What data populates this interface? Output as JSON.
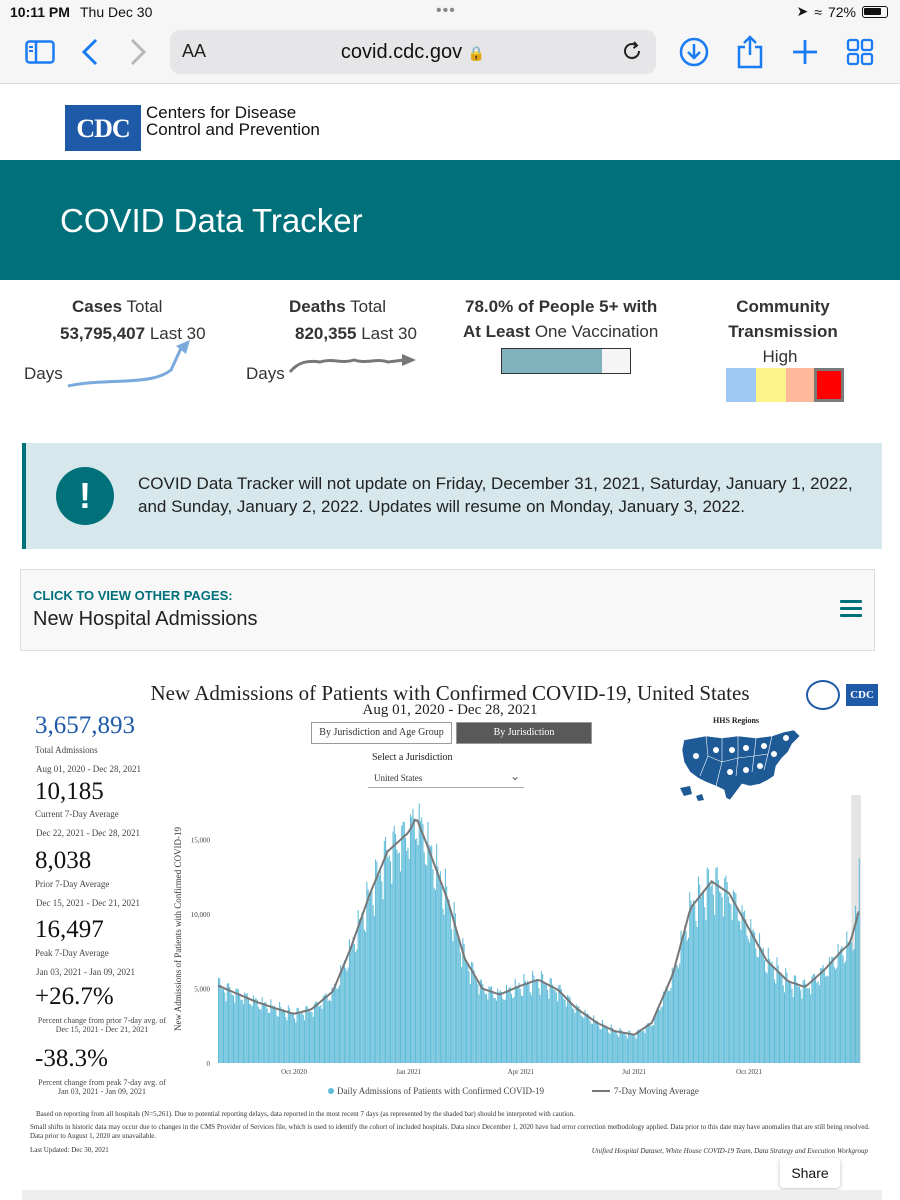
{
  "status_bar": {
    "time": "10:11 PM",
    "date": "Thu Dec 30",
    "battery": "72%"
  },
  "browser": {
    "text_size": "AA",
    "url": "covid.cdc.gov"
  },
  "header": {
    "logo_text": "CDC",
    "org_line1": "Centers for Disease",
    "org_line2": "Control and Prevention",
    "banner_title": "COVID Data Tracker"
  },
  "summary": {
    "cases": {
      "label_bold": "Cases",
      "label": "Total",
      "value": "53,795,407",
      "period_a": "Last 30",
      "period_b": "Days"
    },
    "deaths": {
      "label_bold": "Deaths",
      "label": "Total",
      "value": "820,355",
      "period_a": "Last 30",
      "period_b": "Days"
    },
    "vaccination": {
      "line1": "78.0% of People 5+ with",
      "line2_bold": "At Least",
      "line2": "One Vaccination",
      "percent": 78.0
    },
    "community": {
      "line1": "Community",
      "line2": "Transmission",
      "level": "High"
    },
    "colors": {
      "trend": "#7aa9dc",
      "deaths_trend": "#777777"
    },
    "levels": [
      "#9ec9f5",
      "#fff48a",
      "#fdb99a",
      "#ff0000"
    ]
  },
  "alert": {
    "text": "COVID Data Tracker will not update on Friday, December 31, 2021, Saturday, January 1, 2022, and Sunday, January 2, 2022. Updates will resume on Monday, January 3, 2022."
  },
  "page_chooser": {
    "cta": "CLICK TO VIEW OTHER PAGES:",
    "current": "New Hospital Admissions"
  },
  "dashboard": {
    "title": "New Admissions of Patients with Confirmed COVID-19, United States",
    "date_range": "Aug 01, 2020 - Dec 28, 2021",
    "logo_text": "CDC",
    "tabs": [
      "By Jurisdiction and Age Group",
      "By Jurisdiction"
    ],
    "select_label": "Select a Jurisdiction",
    "select_value": "United States",
    "map_title": "HHS Regions",
    "stats": [
      {
        "value": "3,657,893",
        "label": "Total Admissions",
        "range": "Aug 01, 2020 - Dec 28, 2021"
      },
      {
        "value": "10,185",
        "label": "Current 7-Day Average",
        "range": "Dec 22, 2021 - Dec 28, 2021"
      },
      {
        "value": "8,038",
        "label": "Prior 7-Day Average",
        "range": "Dec 15, 2021 - Dec 21, 2021"
      },
      {
        "value": "16,497",
        "label": "Peak 7-Day Average",
        "range": "Jan 03, 2021 - Jan 09, 2021"
      },
      {
        "value": "+26.7%",
        "label": "Percent change from prior 7-day avg. of Dec 15, 2021 - Dec 21, 2021"
      },
      {
        "value": "-38.3%",
        "label": "Percent change from peak 7-day avg. of Jan 03, 2021 - Jan 09, 2021"
      }
    ],
    "footnote1": "Based on reporting from all hospitals (N=5,261). Due to potential reporting delays, data reported in the most recent 7 days (as represented by the shaded bar) should be interpreted with caution.",
    "footnote2": "Small shifts in historic data may occur due to changes in the CMS Provider of Services file, which is used to identify the cohort of included hospitals. Data since December 1, 2020 have had error correction methodology applied. Data prior to this date may have anomalies that are still being resolved. Data prior to August 1, 2020 are unavailable.",
    "last_updated": "Last Updated: Dec 30, 2021",
    "source": "Unified Hospital Dataset, White House COVID-19 Team, Data Strategy and Execution Workgroup"
  },
  "chart_data": {
    "type": "bar",
    "title": "",
    "ylabel": "New Admissions of Patients with Confirmed COVID-19",
    "xlabel": "",
    "ylim": [
      0,
      18000
    ],
    "yticks": [
      0,
      5000,
      10000,
      15000
    ],
    "ytick_labels": [
      "0",
      "5,000",
      "10,000",
      "15,000"
    ],
    "xticks": [
      {
        "date": "2020-10-01",
        "label": "Oct 2020"
      },
      {
        "date": "2021-01-01",
        "label": "Jan 2021"
      },
      {
        "date": "2021-04-01",
        "label": "Apr 2021"
      },
      {
        "date": "2021-07-01",
        "label": "Jul 2021"
      },
      {
        "date": "2021-10-01",
        "label": "Oct 2021"
      }
    ],
    "x_start": "2020-08-01",
    "x_end": "2021-12-28",
    "shaded_start": "2021-12-22",
    "series": [
      {
        "name": "Daily Admissions of Patients with Confirmed COVID-19",
        "color": "#5fbcd9",
        "kind": "bar"
      },
      {
        "name": "7-Day Moving Average",
        "color": "#777777",
        "kind": "line"
      }
    ],
    "legend_position": "bottom",
    "moving_average_points": [
      [
        "2020-08-01",
        5200
      ],
      [
        "2020-08-15",
        4700
      ],
      [
        "2020-09-01",
        4100
      ],
      [
        "2020-09-15",
        3700
      ],
      [
        "2020-10-01",
        3300
      ],
      [
        "2020-10-15",
        3600
      ],
      [
        "2020-11-01",
        4800
      ],
      [
        "2020-11-15",
        7600
      ],
      [
        "2020-12-01",
        11400
      ],
      [
        "2020-12-15",
        14200
      ],
      [
        "2021-01-01",
        15500
      ],
      [
        "2021-01-07",
        16497
      ],
      [
        "2021-01-15",
        14800
      ],
      [
        "2021-02-01",
        11000
      ],
      [
        "2021-02-15",
        7000
      ],
      [
        "2021-03-01",
        5000
      ],
      [
        "2021-03-15",
        4600
      ],
      [
        "2021-04-01",
        5200
      ],
      [
        "2021-04-15",
        5600
      ],
      [
        "2021-05-01",
        4900
      ],
      [
        "2021-05-15",
        3700
      ],
      [
        "2021-06-01",
        2700
      ],
      [
        "2021-06-15",
        2150
      ],
      [
        "2021-07-01",
        1900
      ],
      [
        "2021-07-15",
        2700
      ],
      [
        "2021-08-01",
        6000
      ],
      [
        "2021-08-15",
        10400
      ],
      [
        "2021-09-01",
        12200
      ],
      [
        "2021-09-15",
        11400
      ],
      [
        "2021-10-01",
        9000
      ],
      [
        "2021-10-15",
        6900
      ],
      [
        "2021-11-01",
        5500
      ],
      [
        "2021-11-15",
        5100
      ],
      [
        "2021-12-01",
        6300
      ],
      [
        "2021-12-15",
        7600
      ],
      [
        "2021-12-21",
        8038
      ],
      [
        "2021-12-28",
        10185
      ]
    ]
  }
}
